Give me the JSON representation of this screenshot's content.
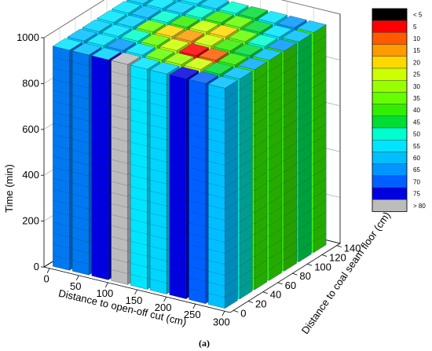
{
  "chart_data": {
    "type": "bar3d",
    "panel_label": "(a)",
    "zlabel": "Time (min)",
    "xlabel": "Distance to open-off cut (cm)",
    "ylabel": "Distance to coal seam floor (cm)",
    "z_ticks": [
      "0",
      "200",
      "400",
      "600",
      "800",
      "1000"
    ],
    "x_ticks": [
      "0",
      "50",
      "100",
      "150",
      "200",
      "250",
      "300"
    ],
    "y_ticks": [
      "0",
      "20",
      "40",
      "60",
      "80",
      "100",
      "120",
      "140"
    ],
    "zlim": [
      0,
      1000
    ],
    "xlim": [
      0,
      300
    ],
    "ylim": [
      0,
      140
    ],
    "grid": true,
    "legend_position": "right",
    "legend": [
      {
        "label": "< 5",
        "color": "#000000"
      },
      {
        "label": "5",
        "color": "#ff0000"
      },
      {
        "label": "10",
        "color": "#ff5a00"
      },
      {
        "label": "15",
        "color": "#ff9a00"
      },
      {
        "label": "20",
        "color": "#ffd800"
      },
      {
        "label": "25",
        "color": "#ccff00"
      },
      {
        "label": "30",
        "color": "#99ff00"
      },
      {
        "label": "35",
        "color": "#66ff00"
      },
      {
        "label": "40",
        "color": "#33ee00"
      },
      {
        "label": "45",
        "color": "#00dd33"
      },
      {
        "label": "50",
        "color": "#00ffcc"
      },
      {
        "label": "55",
        "color": "#00e5ff"
      },
      {
        "label": "60",
        "color": "#00bfff"
      },
      {
        "label": "65",
        "color": "#0096ff"
      },
      {
        "label": "70",
        "color": "#0060ff"
      },
      {
        "label": "75",
        "color": "#0000e0"
      },
      {
        "label": "> 80",
        "color": "#bcbcbc"
      }
    ],
    "front_row_colors": [
      "#0078f0",
      "#0078f0",
      "#0000e0",
      "#bcbcbc",
      "#00e5ff",
      "#00d4ff",
      "#0000e0",
      "#0060ff",
      "#00bfff"
    ],
    "side_column_colors": [
      "#00d8c8",
      "#33ee00",
      "#33ee00",
      "#33dd00",
      "#00dd55",
      "#33ee00",
      "#00aaff"
    ],
    "top_layer_colors": [
      [
        "#00e5ff",
        "#00bfff",
        "#00d4ff",
        "#bcbcbc",
        "#00e5ff",
        "#00d4ff",
        "#0000e0",
        "#0060ff",
        "#00bfff"
      ],
      [
        "#00bfff",
        "#00e5ff",
        "#0096ff",
        "#00e5ff",
        "#66ff00",
        "#99ff00",
        "#ccff00",
        "#00dd33",
        "#00bfff"
      ],
      [
        "#00d4ff",
        "#00e5ff",
        "#00ffcc",
        "#66ff00",
        "#ccff00",
        "#ff0000",
        "#ff5a00",
        "#33ee00",
        "#00aaff"
      ],
      [
        "#00e5ff",
        "#00d4ff",
        "#66ff00",
        "#ffd800",
        "#ff9a00",
        "#ccff00",
        "#33ee00",
        "#00dd33",
        "#00bfff"
      ],
      [
        "#00e5ff",
        "#00bfff",
        "#00ffcc",
        "#33ee00",
        "#ccff00",
        "#ffd800",
        "#66ff00",
        "#00ffcc",
        "#0096ff"
      ],
      [
        "#00d4ff",
        "#00e5ff",
        "#00d4ff",
        "#00ffcc",
        "#33ee00",
        "#66ff00",
        "#00dd33",
        "#00e5ff",
        "#00bfff"
      ],
      [
        "#00bfff",
        "#00d4ff",
        "#00e5ff",
        "#00d4ff",
        "#00ffcc",
        "#00dd33",
        "#00e5ff",
        "#0096ff",
        "#00bfff"
      ]
    ]
  }
}
